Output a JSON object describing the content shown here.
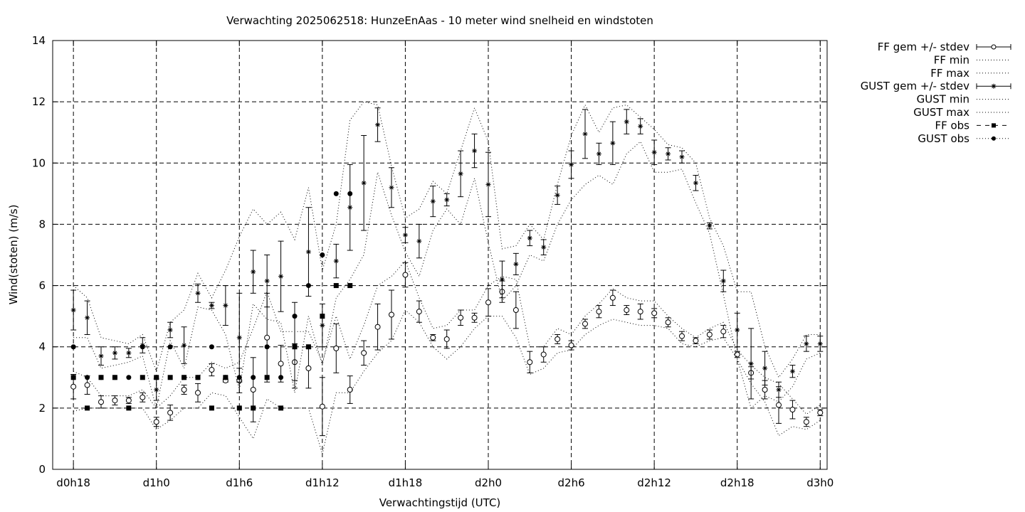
{
  "chart_data": {
    "type": "scatter",
    "title": "Verwachting 2025062518: HunzeEnAas - 10 meter wind snelheid en windstoten",
    "xlabel": "Verwachtingstijd (UTC)",
    "ylabel": "Wind(stoten) (m/s)",
    "ylim": [
      0,
      14
    ],
    "yticks": [
      0,
      2,
      4,
      6,
      8,
      10,
      12,
      14
    ],
    "xlim": [
      -1.5,
      54.5
    ],
    "xticks": [
      {
        "x": 0,
        "label": "d0h18"
      },
      {
        "x": 6,
        "label": "d1h0"
      },
      {
        "x": 12,
        "label": "d1h6"
      },
      {
        "x": 18,
        "label": "d1h12"
      },
      {
        "x": 24,
        "label": "d1h18"
      },
      {
        "x": 30,
        "label": "d2h0"
      },
      {
        "x": 36,
        "label": "d2h6"
      },
      {
        "x": 42,
        "label": "d2h12"
      },
      {
        "x": 48,
        "label": "d2h18"
      },
      {
        "x": 54,
        "label": "d3h0"
      }
    ],
    "grid": true,
    "legend_position": "outside-right",
    "series": [
      {
        "name": "FF gem +/- stdev",
        "style": "errorbar-circle",
        "x": [
          0,
          1,
          2,
          3,
          4,
          5,
          6,
          7,
          8,
          9,
          10,
          11,
          12,
          13,
          14,
          15,
          16,
          17,
          18,
          19,
          20,
          21,
          22,
          23,
          24,
          25,
          26,
          27,
          28,
          29,
          30,
          31,
          32,
          33,
          34,
          35,
          36,
          37,
          38,
          39,
          40,
          41,
          42,
          43,
          44,
          45,
          46,
          47,
          48,
          49,
          50,
          51,
          52,
          53,
          54
        ],
        "y": [
          2.7,
          2.75,
          2.2,
          2.25,
          2.25,
          2.35,
          1.55,
          1.85,
          2.6,
          2.5,
          3.25,
          2.9,
          2.9,
          2.6,
          4.3,
          3.45,
          3.5,
          3.3,
          2.05,
          3.95,
          2.6,
          3.8,
          4.65,
          5.05,
          6.35,
          5.15,
          4.3,
          4.25,
          4.95,
          4.95,
          5.45,
          5.8,
          5.2,
          3.5,
          3.75,
          4.25,
          4.05,
          4.75,
          5.15,
          5.6,
          5.2,
          5.15,
          5.1,
          4.8,
          4.35,
          4.2,
          4.4,
          4.5,
          3.75,
          3.15,
          2.6,
          2.1,
          1.95,
          1.55,
          1.85
        ],
        "err": [
          0.4,
          0.3,
          0.2,
          0.15,
          0.1,
          0.15,
          0.15,
          0.25,
          0.15,
          0.3,
          0.2,
          0.05,
          0.4,
          1.05,
          1.45,
          0.6,
          0.6,
          0.65,
          0.95,
          0.8,
          0.45,
          0.4,
          0.75,
          0.8,
          0.4,
          0.35,
          0.1,
          0.3,
          0.25,
          0.15,
          0.45,
          0.35,
          0.6,
          0.35,
          0.25,
          0.15,
          0.15,
          0.15,
          0.2,
          0.25,
          0.15,
          0.25,
          0.15,
          0.15,
          0.15,
          0.1,
          0.15,
          0.2,
          0.1,
          0.2,
          0.3,
          0.6,
          0.3,
          0.15,
          0.1
        ]
      },
      {
        "name": "FF min",
        "style": "dotted",
        "x": [
          0,
          1,
          2,
          3,
          4,
          5,
          6,
          7,
          8,
          9,
          10,
          11,
          12,
          13,
          14,
          15,
          16,
          17,
          18,
          19,
          20,
          21,
          22,
          23,
          24,
          25,
          26,
          27,
          28,
          29,
          30,
          31,
          32,
          33,
          34,
          35,
          36,
          37,
          38,
          39,
          40,
          41,
          42,
          43,
          44,
          45,
          46,
          47,
          48,
          49,
          50,
          51,
          52,
          53,
          54
        ],
        "y": [
          1.9,
          2.0,
          2.0,
          2.0,
          2.0,
          2.0,
          1.3,
          1.6,
          2.0,
          2.0,
          2.5,
          2.4,
          1.7,
          1.0,
          2.3,
          2.0,
          2.0,
          2.0,
          0.5,
          2.5,
          2.5,
          3.2,
          3.8,
          4.2,
          5.2,
          4.8,
          4.0,
          3.6,
          4.0,
          4.6,
          5.0,
          5.0,
          4.3,
          3.1,
          3.3,
          3.8,
          3.9,
          4.4,
          4.7,
          4.9,
          4.8,
          4.7,
          4.7,
          4.6,
          4.1,
          4.0,
          4.2,
          4.3,
          3.6,
          2.8,
          2.2,
          1.1,
          1.4,
          1.3,
          1.6
        ]
      },
      {
        "name": "FF max",
        "style": "dotted",
        "x": [
          0,
          1,
          2,
          3,
          4,
          5,
          6,
          7,
          8,
          9,
          10,
          11,
          12,
          13,
          14,
          15,
          16,
          17,
          18,
          19,
          20,
          21,
          22,
          23,
          24,
          25,
          26,
          27,
          28,
          29,
          30,
          31,
          32,
          33,
          34,
          35,
          36,
          37,
          38,
          39,
          40,
          41,
          42,
          43,
          44,
          45,
          46,
          47,
          48,
          49,
          50,
          51,
          52,
          53,
          54
        ],
        "y": [
          3.2,
          3.0,
          2.4,
          2.4,
          2.4,
          2.6,
          2.0,
          2.4,
          3.0,
          3.0,
          3.5,
          3.3,
          3.5,
          4.6,
          5.8,
          4.5,
          4.5,
          4.5,
          3.5,
          5.0,
          3.6,
          4.7,
          6.0,
          6.3,
          6.8,
          5.6,
          4.6,
          4.7,
          5.2,
          5.2,
          6.0,
          6.3,
          6.2,
          4.0,
          4.0,
          4.6,
          4.4,
          5.0,
          5.4,
          5.9,
          5.6,
          5.5,
          5.5,
          5.0,
          4.6,
          4.3,
          4.6,
          4.8,
          3.9,
          3.4,
          3.0,
          2.8,
          2.3,
          1.8,
          2.1
        ]
      },
      {
        "name": "GUST gem +/- stdev",
        "style": "errorbar-star",
        "x": [
          0,
          1,
          2,
          3,
          4,
          5,
          6,
          7,
          8,
          9,
          10,
          11,
          12,
          13,
          14,
          15,
          16,
          17,
          18,
          19,
          20,
          21,
          22,
          23,
          24,
          25,
          26,
          27,
          28,
          29,
          30,
          31,
          32,
          33,
          34,
          35,
          36,
          37,
          38,
          39,
          40,
          41,
          42,
          43,
          44,
          45,
          46,
          47,
          48,
          49,
          50,
          51,
          52,
          53,
          54
        ],
        "y": [
          5.2,
          4.95,
          3.7,
          3.8,
          3.8,
          4.05,
          2.6,
          4.55,
          4.05,
          5.75,
          5.35,
          5.35,
          4.3,
          6.45,
          6.15,
          6.3,
          4.05,
          7.1,
          4.7,
          6.8,
          8.55,
          9.35,
          11.25,
          9.2,
          7.65,
          7.45,
          8.75,
          8.8,
          9.65,
          10.4,
          9.3,
          6.2,
          6.7,
          7.55,
          7.25,
          8.95,
          9.95,
          10.95,
          10.3,
          10.65,
          11.35,
          11.2,
          10.35,
          10.3,
          10.2,
          9.35,
          7.95,
          6.15,
          4.55,
          3.45,
          3.3,
          2.6,
          3.2,
          4.1,
          4.1
        ],
        "err": [
          0.65,
          0.55,
          0.3,
          0.2,
          0.15,
          0.25,
          0.35,
          0.25,
          0.6,
          0.3,
          0.1,
          0.65,
          1.45,
          0.7,
          0.85,
          1.15,
          1.4,
          1.45,
          0.7,
          0.55,
          1.4,
          1.55,
          0.55,
          0.65,
          0.25,
          0.55,
          0.5,
          0.2,
          0.75,
          0.55,
          1.05,
          0.6,
          0.35,
          0.25,
          0.25,
          0.3,
          0.45,
          0.8,
          0.35,
          0.7,
          0.4,
          0.25,
          0.4,
          0.2,
          0.2,
          0.25,
          0.1,
          0.35,
          0.55,
          1.15,
          0.55,
          0.25,
          0.2,
          0.25,
          0.25
        ]
      },
      {
        "name": "GUST min",
        "style": "dotted",
        "x": [
          0,
          1,
          2,
          3,
          4,
          5,
          6,
          7,
          8,
          9,
          10,
          11,
          12,
          13,
          14,
          15,
          16,
          17,
          18,
          19,
          20,
          21,
          22,
          23,
          24,
          25,
          26,
          27,
          28,
          29,
          30,
          31,
          32,
          33,
          34,
          35,
          36,
          37,
          38,
          39,
          40,
          41,
          42,
          43,
          44,
          45,
          46,
          47,
          48,
          49,
          50,
          51,
          52,
          53,
          54
        ],
        "y": [
          4.3,
          4.3,
          3.3,
          3.4,
          3.5,
          3.7,
          2.0,
          4.2,
          3.3,
          5.3,
          5.2,
          4.4,
          2.6,
          5.4,
          4.9,
          4.8,
          2.5,
          5.0,
          3.4,
          5.6,
          6.2,
          7.0,
          9.7,
          8.3,
          7.1,
          6.3,
          7.8,
          8.5,
          8.0,
          9.5,
          7.4,
          5.5,
          6.0,
          7.0,
          6.8,
          8.0,
          8.8,
          9.3,
          9.6,
          9.3,
          10.3,
          10.7,
          9.7,
          9.7,
          9.8,
          8.7,
          7.7,
          5.7,
          3.6,
          2.0,
          2.4,
          2.2,
          2.7,
          3.6,
          3.8
        ]
      },
      {
        "name": "GUST max",
        "style": "dotted",
        "x": [
          0,
          1,
          2,
          3,
          4,
          5,
          6,
          7,
          8,
          9,
          10,
          11,
          12,
          13,
          14,
          15,
          16,
          17,
          18,
          19,
          20,
          21,
          22,
          23,
          24,
          25,
          26,
          27,
          28,
          29,
          30,
          31,
          32,
          33,
          34,
          35,
          36,
          37,
          38,
          39,
          40,
          41,
          42,
          43,
          44,
          45,
          46,
          47,
          48,
          49,
          50,
          51,
          52,
          53,
          54
        ],
        "y": [
          6.0,
          5.6,
          4.3,
          4.2,
          4.1,
          4.4,
          3.2,
          4.8,
          5.2,
          6.4,
          5.6,
          6.5,
          7.6,
          8.5,
          8.0,
          8.4,
          7.5,
          9.2,
          6.5,
          8.0,
          11.4,
          12.0,
          11.9,
          9.9,
          8.2,
          8.5,
          9.4,
          9.0,
          10.4,
          11.8,
          10.7,
          7.2,
          7.3,
          8.0,
          7.5,
          9.3,
          10.9,
          11.9,
          11.0,
          11.8,
          11.9,
          11.5,
          11.1,
          10.6,
          10.5,
          10.0,
          8.2,
          7.3,
          5.8,
          5.8,
          4.0,
          3.0,
          3.6,
          4.4,
          4.4
        ]
      },
      {
        "name": "FF obs",
        "style": "square",
        "x": [
          0,
          1,
          2,
          3,
          4,
          5,
          6,
          7,
          8,
          9,
          10,
          11,
          12,
          13,
          14,
          15,
          16,
          17,
          18,
          19,
          20
        ],
        "y": [
          3,
          2,
          3,
          3,
          2,
          3,
          3,
          3,
          3,
          3,
          2,
          3,
          2,
          2,
          3,
          2,
          4,
          4,
          5,
          6,
          6
        ]
      },
      {
        "name": "GUST obs",
        "style": "dot",
        "x": [
          0,
          1,
          2,
          3,
          4,
          5,
          6,
          7,
          8,
          9,
          10,
          11,
          12,
          13,
          14,
          15,
          16,
          17,
          18,
          19,
          20
        ],
        "y": [
          4,
          3,
          3,
          3,
          3,
          4,
          3,
          4,
          3,
          3,
          4,
          3,
          3,
          3,
          4,
          3,
          5,
          6,
          7,
          9,
          9
        ]
      }
    ]
  }
}
